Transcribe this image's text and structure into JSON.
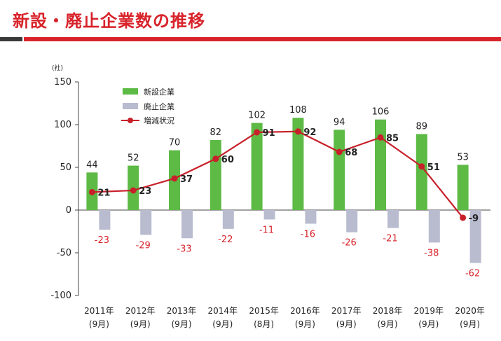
{
  "page_title": "新設・廃止企業数の推移",
  "colors": {
    "title": "#d8232a",
    "new_bar": "#5dba45",
    "closed_bar": "#b9bccf",
    "net_line": "#c8202a",
    "negative_label": "#d8232a"
  },
  "chart_data": {
    "type": "bar",
    "title": "新設・廃止企業数の推移",
    "unit": "(社)",
    "ylim": [
      -100,
      150
    ],
    "yticks": [
      150,
      100,
      50,
      0,
      -50,
      -100
    ],
    "categories": [
      "2011年",
      "2012年",
      "2013年",
      "2014年",
      "2015年",
      "2016年",
      "2017年",
      "2018年",
      "2019年",
      "2020年"
    ],
    "sub_categories": [
      "(9月)",
      "(9月)",
      "(9月)",
      "(9月)",
      "(8月)",
      "(9月)",
      "(9月)",
      "(9月)",
      "(9月)",
      "(9月)"
    ],
    "legend_position": "top-left",
    "series": [
      {
        "name": "新設企業",
        "type": "bar",
        "values": [
          44,
          52,
          70,
          82,
          102,
          108,
          94,
          106,
          89,
          53
        ]
      },
      {
        "name": "廃止企業",
        "type": "bar",
        "values": [
          -23,
          -29,
          -33,
          -22,
          -11,
          -16,
          -26,
          -21,
          -38,
          -62
        ]
      },
      {
        "name": "増減状況",
        "type": "line",
        "values": [
          21,
          23,
          37,
          60,
          91,
          92,
          68,
          85,
          51,
          -9
        ]
      }
    ]
  }
}
